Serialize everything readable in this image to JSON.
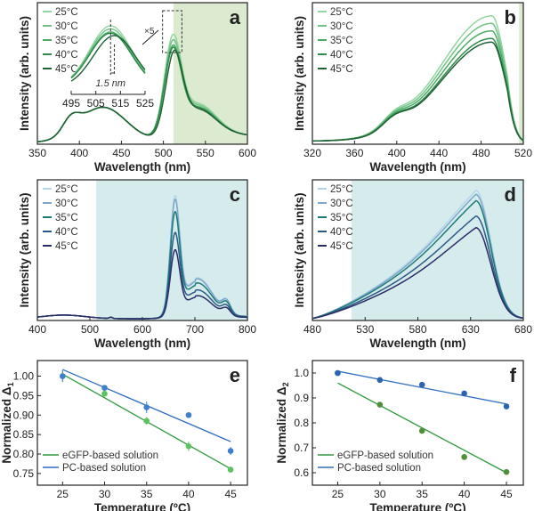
{
  "chart_data": [
    {
      "panel": "a",
      "type": "line",
      "letter": "a",
      "xlabel": "Wavelength (nm)",
      "ylabel": "Intensity (arb. units)",
      "xlim": [
        350,
        600
      ],
      "xticks": [
        350,
        400,
        450,
        500,
        550,
        600
      ],
      "shade": [
        512,
        600
      ],
      "shade_color": "#dcebd0",
      "legend": [
        "25°C",
        "30°C",
        "35°C",
        "40°C",
        "45°C"
      ],
      "colors": [
        "#93d6a2",
        "#6fc283",
        "#4aab64",
        "#2f8c4a",
        "#1f6034"
      ],
      "series": [
        {
          "name": "25°C",
          "peak_nm": 511,
          "rel_peak": 1.0
        },
        {
          "name": "30°C",
          "peak_nm": 511,
          "rel_peak": 0.95
        },
        {
          "name": "35°C",
          "peak_nm": 511,
          "rel_peak": 0.9
        },
        {
          "name": "40°C",
          "peak_nm": 511,
          "rel_peak": 0.88
        },
        {
          "name": "45°C",
          "peak_nm": 512.5,
          "rel_peak": 0.84
        }
      ],
      "inset": {
        "xlim": [
          495,
          525
        ],
        "xticks": [
          495,
          505,
          515,
          525
        ],
        "annotation": "1.5 nm",
        "magnification": "×5"
      }
    },
    {
      "panel": "b",
      "type": "line",
      "letter": "b",
      "xlabel": "Wavelength (nm)",
      "ylabel": "Intensity (arb. units)",
      "xlim": [
        320,
        520
      ],
      "xticks": [
        320,
        360,
        400,
        440,
        480,
        520
      ],
      "shade": [
        516,
        520
      ],
      "shade_color": "#dcebd0",
      "legend": [
        "25°C",
        "30°C",
        "35°C",
        "40°C",
        "45°C"
      ],
      "colors": [
        "#93d6a2",
        "#6fc283",
        "#4aab64",
        "#2f8c4a",
        "#1f6034"
      ],
      "series": [
        {
          "name": "25°C",
          "peak_nm": 490,
          "rel_peak": 1.0
        },
        {
          "name": "30°C",
          "peak_nm": 490,
          "rel_peak": 0.94
        },
        {
          "name": "35°C",
          "peak_nm": 490,
          "rel_peak": 0.88
        },
        {
          "name": "40°C",
          "peak_nm": 490,
          "rel_peak": 0.82
        },
        {
          "name": "45°C",
          "peak_nm": 490,
          "rel_peak": 0.79
        }
      ]
    },
    {
      "panel": "c",
      "type": "line",
      "letter": "c",
      "xlabel": "Wavelength (nm)",
      "ylabel": "Intensity (arb. units)",
      "xlim": [
        400,
        800
      ],
      "xticks": [
        400,
        500,
        600,
        700,
        800
      ],
      "shade": [
        512,
        800
      ],
      "shade_color": "#d6ecec",
      "legend": [
        "25°C",
        "30°C",
        "35°C",
        "40°C",
        "45°C"
      ],
      "colors": [
        "#b5d6ea",
        "#7ea6cc",
        "#1b7b77",
        "#2d5987",
        "#2b2c68"
      ],
      "series": [
        {
          "name": "25°C",
          "peak_nm": 662,
          "rel_peak": 1.0
        },
        {
          "name": "30°C",
          "peak_nm": 662,
          "rel_peak": 0.97
        },
        {
          "name": "35°C",
          "peak_nm": 662,
          "rel_peak": 0.87
        },
        {
          "name": "40°C",
          "peak_nm": 662,
          "rel_peak": 0.7
        },
        {
          "name": "45°C",
          "peak_nm": 662,
          "rel_peak": 0.56
        }
      ]
    },
    {
      "panel": "d",
      "type": "line",
      "letter": "d",
      "xlabel": "Wavelength (nm)",
      "ylabel": "Intensity (arb. units)",
      "xlim": [
        480,
        680
      ],
      "xticks": [
        480,
        530,
        580,
        630,
        680
      ],
      "shade": [
        517,
        680
      ],
      "shade_color": "#d6ecec",
      "legend": [
        "25°C",
        "30°C",
        "35°C",
        "40°C",
        "45°C"
      ],
      "colors": [
        "#b5d6ea",
        "#7ea6cc",
        "#1b7b77",
        "#2d5987",
        "#2b2c68"
      ],
      "series": [
        {
          "name": "25°C",
          "peak_nm": 635,
          "rel_peak": 1.0
        },
        {
          "name": "30°C",
          "peak_nm": 635,
          "rel_peak": 0.97
        },
        {
          "name": "35°C",
          "peak_nm": 635,
          "rel_peak": 0.92
        },
        {
          "name": "40°C",
          "peak_nm": 635,
          "rel_peak": 0.8
        },
        {
          "name": "45°C",
          "peak_nm": 635,
          "rel_peak": 0.71
        }
      ]
    },
    {
      "panel": "e",
      "type": "scatter",
      "letter": "e",
      "xlabel": "Temperature (ºC)",
      "ylabel": "Normalized Δ",
      "ylabel_sub": "1",
      "xlim": [
        22,
        47
      ],
      "ylim": [
        0.72,
        1.04
      ],
      "xticks": [
        25,
        30,
        35,
        40,
        45
      ],
      "yticks": [
        "0.75",
        "0.80",
        "0.85",
        "0.90",
        "0.95",
        "1.00"
      ],
      "x": [
        25,
        30,
        35,
        40,
        45
      ],
      "series": [
        {
          "name": "eGFP-based solution",
          "color": "#2e9a3e",
          "point_color": "#5cc45f",
          "values": [
            1.0,
            0.955,
            0.885,
            0.82,
            0.76
          ],
          "errors": [
            0.015,
            0.008,
            0.01,
            0.012,
            0.008
          ],
          "fit": [
            1.005,
            0.762
          ]
        },
        {
          "name": "PC-based solution",
          "color": "#2f6fc0",
          "point_color": "#3e7fcf",
          "values": [
            1.0,
            0.97,
            0.92,
            0.9,
            0.808
          ],
          "errors": [
            0.015,
            0.006,
            0.015,
            0.005,
            0.01
          ],
          "fit": [
            1.017,
            0.832
          ]
        }
      ]
    },
    {
      "panel": "f",
      "type": "scatter",
      "letter": "f",
      "xlabel": "Temperature (ºC)",
      "ylabel": "Normalized Δ",
      "ylabel_sub": "2",
      "xlim": [
        22,
        47
      ],
      "ylim": [
        0.55,
        1.05
      ],
      "xticks": [
        25,
        30,
        35,
        40,
        45
      ],
      "yticks": [
        "0.6",
        "0.7",
        "0.8",
        "0.9",
        "1.0"
      ],
      "x": [
        25,
        30,
        35,
        40,
        45
      ],
      "series": [
        {
          "name": "eGFP-based solution",
          "color": "#2e9a3e",
          "point_color": "#4f8f3a",
          "values": [
            1.0,
            0.873,
            0.768,
            0.663,
            0.603
          ],
          "errors": [
            0.008,
            0.008,
            0.008,
            0.008,
            0.008
          ],
          "fit": [
            0.96,
            0.6
          ]
        },
        {
          "name": "PC-based solution",
          "color": "#2f6fc0",
          "point_color": "#2a63b0",
          "values": [
            1.0,
            0.972,
            0.953,
            0.918,
            0.866
          ],
          "errors": [
            0.008,
            0.008,
            0.008,
            0.008,
            0.008
          ],
          "fit": [
            1.007,
            0.876
          ]
        }
      ]
    }
  ]
}
